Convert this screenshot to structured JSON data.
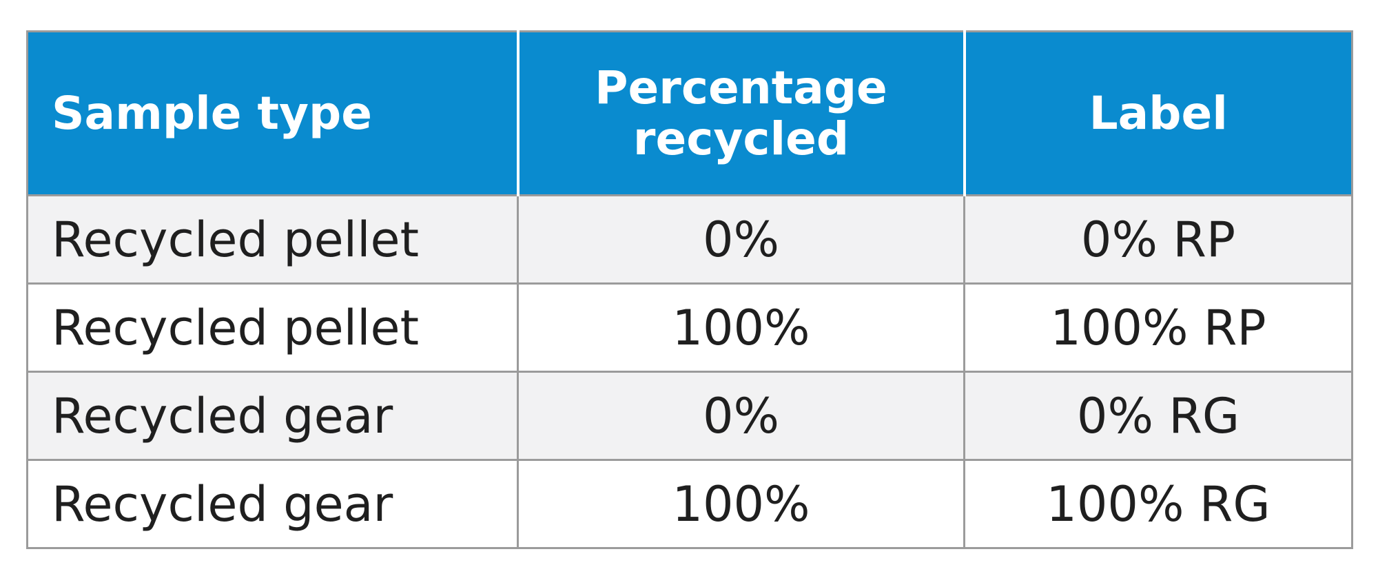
{
  "table": {
    "headers": [
      "Sample type",
      "Percentage recycled",
      "Label"
    ],
    "rows": [
      [
        "Recycled pellet",
        "0%",
        "0% RP"
      ],
      [
        "Recycled pellet",
        "100%",
        "100% RP"
      ],
      [
        "Recycled gear",
        "0%",
        "0% RG"
      ],
      [
        "Recycled gear",
        "100%",
        "100% RG"
      ]
    ]
  },
  "colors": {
    "header_bg": "#0a8bcf",
    "header_text": "#ffffff",
    "row_alt_bg": "#f2f2f3",
    "border": "#9b9b9b",
    "body_text": "#1f1f1f"
  }
}
